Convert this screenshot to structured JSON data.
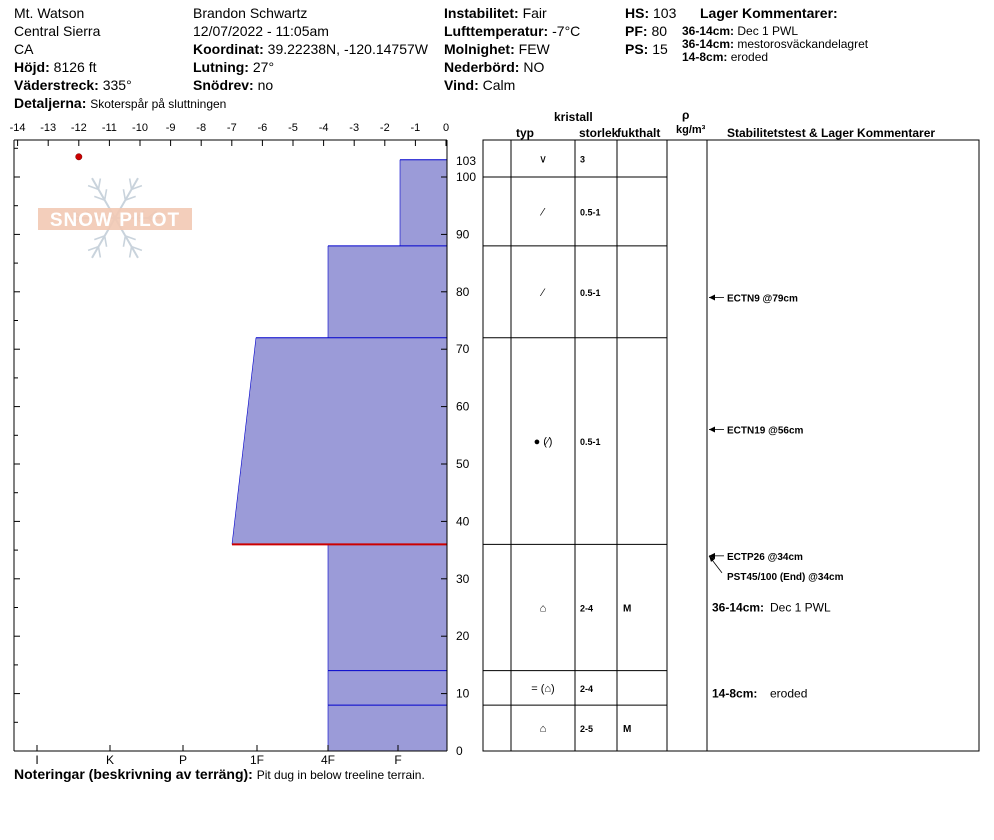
{
  "header": {
    "location": "Mt. Watson",
    "range": "Central Sierra",
    "state": "CA",
    "elevation_label": "Höjd:",
    "elevation": "8126 ft",
    "aspect_label": "Väderstreck:",
    "aspect": "335°",
    "details_label": "Detaljerna:",
    "details": "Skoterspår på sluttningen",
    "observer": "Brandon Schwartz",
    "datetime": "12/07/2022 - 11:05am",
    "coord_label": "Koordinat:",
    "coord": "39.22238N, -120.14757W",
    "slope_label": "Lutning:",
    "slope": "27°",
    "drift_label": "Snödrev:",
    "drift": "no",
    "instability_label": "Instabilitet:",
    "instability": "Fair",
    "airtemp_label": "Lufttemperatur:",
    "airtemp": "-7°C",
    "cloud_label": "Molnighet:",
    "cloud": "FEW",
    "precip_label": "Nederbörd:",
    "precip": "NO",
    "wind_label": "Vind:",
    "wind": "Calm",
    "hs_label": "HS:",
    "hs": "103",
    "pf_label": "PF:",
    "pf": "80",
    "ps_label": "PS:",
    "ps": "15",
    "layer_comments_title": "Lager Kommentarer:",
    "layer_comments": [
      {
        "range": "36-14cm:",
        "text": "Dec 1 PWL"
      },
      {
        "range": "36-14cm:",
        "text": "mestorosväckandelagret"
      },
      {
        "range": "14-8cm:",
        "text": "eroded"
      }
    ]
  },
  "footer": {
    "notes_label": "Noteringar (beskrivning av terräng):",
    "notes": "Pit dug in below treeline terrain."
  },
  "columns": {
    "crystal": "kristall",
    "type": "typ",
    "size": "storlek",
    "moisture": "fukthalt",
    "density_symbol": "ρ",
    "density_unit": "kg/m³",
    "stability": "Stabilitetstest & Lager Kommentarer"
  },
  "watermark": "SNOW PILOT",
  "chart_data": {
    "type": "snow-profile",
    "temperature_axis": {
      "min": -14,
      "max": 0,
      "ticks": [
        -14,
        -13,
        -12,
        -11,
        -10,
        -9,
        -8,
        -7,
        -6,
        -5,
        -4,
        -3,
        -2,
        -1,
        0
      ]
    },
    "depth_axis": {
      "min": 0,
      "max": 105,
      "ticks": [
        0,
        10,
        20,
        30,
        40,
        50,
        60,
        70,
        80,
        90,
        100
      ],
      "top_label": 103
    },
    "hardness_scale": [
      "I",
      "K",
      "P",
      "1F",
      "4F",
      "F"
    ],
    "temperature_points": [
      {
        "temp": -12,
        "depth": 103
      }
    ],
    "hardness_layers": [
      {
        "top": 103,
        "bottom": 88,
        "hardness_top": "F+",
        "hardness_bottom": "F+"
      },
      {
        "top": 88,
        "bottom": 72,
        "hardness_top": "4F",
        "hardness_bottom": "4F"
      },
      {
        "top": 72,
        "bottom": 36,
        "hardness_top": "1F-",
        "hardness_bottom": "1F+"
      },
      {
        "top": 36,
        "bottom": 14,
        "hardness_top": "4F",
        "hardness_bottom": "4F"
      },
      {
        "top": 14,
        "bottom": 8,
        "hardness_top": "4F",
        "hardness_bottom": "4F"
      },
      {
        "top": 8,
        "bottom": 0,
        "hardness_top": "4F",
        "hardness_bottom": "4F"
      }
    ],
    "critical_layer_depth": 36,
    "layer_table": [
      {
        "top": 103,
        "bottom": 100,
        "type": "∨",
        "size": "3",
        "moisture": ""
      },
      {
        "top": 100,
        "bottom": 88,
        "type": "⁄",
        "size": "0.5-1",
        "moisture": ""
      },
      {
        "top": 88,
        "bottom": 72,
        "type": "⁄",
        "size": "0.5-1",
        "moisture": ""
      },
      {
        "top": 72,
        "bottom": 36,
        "type": "● (⁄)",
        "size": "0.5-1",
        "moisture": ""
      },
      {
        "top": 36,
        "bottom": 14,
        "type": "⌂",
        "size": "2-4",
        "moisture": "M"
      },
      {
        "top": 14,
        "bottom": 8,
        "type": "= (⌂)",
        "size": "2-4",
        "moisture": ""
      },
      {
        "top": 8,
        "bottom": 0,
        "type": "⌂",
        "size": "2-5",
        "moisture": "M"
      }
    ],
    "stability_tests": [
      {
        "depth": 79,
        "label": "ECTN9 @79cm"
      },
      {
        "depth": 56,
        "label": "ECTN19 @56cm"
      },
      {
        "depth": 34,
        "label": "ECTP26 @34cm"
      },
      {
        "depth": 34,
        "label": "PST45/100 (End) @34cm"
      }
    ],
    "layer_notes": [
      {
        "depth": 25,
        "range": "36-14cm:",
        "text": "Dec 1 PWL"
      },
      {
        "depth": 10,
        "range": "14-8cm:",
        "text": "eroded"
      }
    ],
    "colors": {
      "fill": "#9b9bd8",
      "layer_line": "#0000cc",
      "critical": "#cc0000",
      "temp_point": "#cc0000"
    }
  }
}
